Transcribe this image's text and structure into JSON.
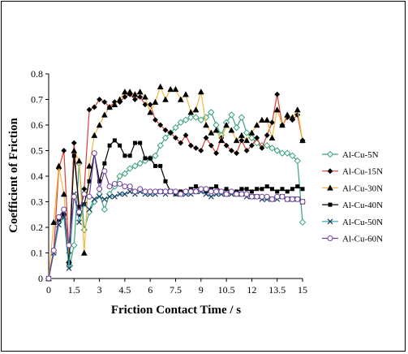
{
  "chart_data": {
    "type": "line",
    "xlabel": "Friction Contact Time / s",
    "ylabel": "Coefficient of Friction",
    "xlim": [
      0,
      15
    ],
    "ylim": [
      0,
      0.8
    ],
    "xticks": [
      0,
      1.5,
      3,
      4.5,
      6,
      7.5,
      9,
      10.5,
      12,
      13.5,
      15
    ],
    "xtick_labels": [
      "0",
      "1.5",
      "3",
      "4.5",
      "6",
      "7.5",
      "9",
      "10.5",
      "12",
      "13.5",
      "15"
    ],
    "yticks": [
      0,
      0.1,
      0.2,
      0.3,
      0.4,
      0.5,
      0.6,
      0.7,
      0.8
    ],
    "ytick_labels": [
      "0",
      "0.1",
      "0.2",
      "0.3",
      "0.4",
      "0.5",
      "0.6",
      "0.7",
      "0.8"
    ],
    "legend_position": "right",
    "grid": false,
    "series": [
      {
        "name": "Al-Cu-5N",
        "color": "#3aa37a",
        "marker": "diamond-open",
        "points": [
          [
            0,
            0
          ],
          [
            0.3,
            0.1
          ],
          [
            0.6,
            0.22
          ],
          [
            0.9,
            0.25
          ],
          [
            1.25,
            0.05
          ],
          [
            1.5,
            0.13
          ],
          [
            1.8,
            0.45
          ],
          [
            2.1,
            0.19
          ],
          [
            2.4,
            0.26
          ],
          [
            2.7,
            0.3
          ],
          [
            3.0,
            0.33
          ],
          [
            3.3,
            0.27
          ],
          [
            3.6,
            0.33
          ],
          [
            3.9,
            0.36
          ],
          [
            4.2,
            0.4
          ],
          [
            4.5,
            0.41
          ],
          [
            4.8,
            0.43
          ],
          [
            5.1,
            0.44
          ],
          [
            5.4,
            0.45
          ],
          [
            5.7,
            0.46
          ],
          [
            6.0,
            0.47
          ],
          [
            6.3,
            0.48
          ],
          [
            6.6,
            0.52
          ],
          [
            6.9,
            0.55
          ],
          [
            7.2,
            0.57
          ],
          [
            7.5,
            0.59
          ],
          [
            7.8,
            0.61
          ],
          [
            8.1,
            0.62
          ],
          [
            8.4,
            0.63
          ],
          [
            8.7,
            0.63
          ],
          [
            9.0,
            0.62
          ],
          [
            9.3,
            0.63
          ],
          [
            9.6,
            0.65
          ],
          [
            9.9,
            0.6
          ],
          [
            10.2,
            0.56
          ],
          [
            10.5,
            0.61
          ],
          [
            10.8,
            0.64
          ],
          [
            11.1,
            0.59
          ],
          [
            11.4,
            0.63
          ],
          [
            11.7,
            0.57
          ],
          [
            12.0,
            0.55
          ],
          [
            12.3,
            0.53
          ],
          [
            12.6,
            0.52
          ],
          [
            12.9,
            0.52
          ],
          [
            13.2,
            0.51
          ],
          [
            13.5,
            0.5
          ],
          [
            13.8,
            0.49
          ],
          [
            14.1,
            0.49
          ],
          [
            14.4,
            0.48
          ],
          [
            14.7,
            0.46
          ],
          [
            15.0,
            0.22
          ]
        ]
      },
      {
        "name": "Al-Cu-15N",
        "color": "#e03c31",
        "marker": "diamond-filled",
        "points": [
          [
            0,
            0
          ],
          [
            0.3,
            0.11
          ],
          [
            0.6,
            0.43
          ],
          [
            0.9,
            0.5
          ],
          [
            1.2,
            0.1
          ],
          [
            1.5,
            0.53
          ],
          [
            1.8,
            0.25
          ],
          [
            2.1,
            0.35
          ],
          [
            2.4,
            0.66
          ],
          [
            2.7,
            0.67
          ],
          [
            3.0,
            0.7
          ],
          [
            3.3,
            0.69
          ],
          [
            3.6,
            0.67
          ],
          [
            3.9,
            0.69
          ],
          [
            4.2,
            0.69
          ],
          [
            4.5,
            0.71
          ],
          [
            4.8,
            0.72
          ],
          [
            5.1,
            0.7
          ],
          [
            5.4,
            0.71
          ],
          [
            5.7,
            0.68
          ],
          [
            6.0,
            0.68
          ],
          [
            6.3,
            0.62
          ],
          [
            6.6,
            0.6
          ],
          [
            6.9,
            0.58
          ],
          [
            7.2,
            0.57
          ],
          [
            7.5,
            0.55
          ],
          [
            7.8,
            0.53
          ],
          [
            8.1,
            0.56
          ],
          [
            8.4,
            0.52
          ],
          [
            8.7,
            0.51
          ],
          [
            9.0,
            0.5
          ],
          [
            9.3,
            0.55
          ],
          [
            9.6,
            0.52
          ],
          [
            9.9,
            0.49
          ],
          [
            10.2,
            0.55
          ],
          [
            10.5,
            0.52
          ],
          [
            10.8,
            0.5
          ],
          [
            11.1,
            0.49
          ],
          [
            11.4,
            0.54
          ],
          [
            11.7,
            0.5
          ],
          [
            12.0,
            0.52
          ],
          [
            12.3,
            0.55
          ],
          [
            12.6,
            0.51
          ],
          [
            12.9,
            0.56
          ],
          [
            13.2,
            0.61
          ],
          [
            13.5,
            0.72
          ],
          [
            13.8,
            0.6
          ],
          [
            14.1,
            0.63
          ],
          [
            14.4,
            0.62
          ],
          [
            14.7,
            0.64
          ],
          [
            15.0,
            0.54
          ]
        ]
      },
      {
        "name": "Al-Cu-30N",
        "color": "#f0b940",
        "marker": "triangle-filled",
        "points": [
          [
            0,
            0
          ],
          [
            0.3,
            0.22
          ],
          [
            0.6,
            0.44
          ],
          [
            0.9,
            0.33
          ],
          [
            1.2,
            0.07
          ],
          [
            1.5,
            0.5
          ],
          [
            1.8,
            0.46
          ],
          [
            2.1,
            0.1
          ],
          [
            2.4,
            0.44
          ],
          [
            2.7,
            0.56
          ],
          [
            3.0,
            0.6
          ],
          [
            3.3,
            0.64
          ],
          [
            3.6,
            0.67
          ],
          [
            3.9,
            0.68
          ],
          [
            4.2,
            0.7
          ],
          [
            4.5,
            0.73
          ],
          [
            4.8,
            0.73
          ],
          [
            5.1,
            0.72
          ],
          [
            5.4,
            0.73
          ],
          [
            5.7,
            0.71
          ],
          [
            6.0,
            0.65
          ],
          [
            6.3,
            0.69
          ],
          [
            6.6,
            0.75
          ],
          [
            6.9,
            0.7
          ],
          [
            7.2,
            0.74
          ],
          [
            7.5,
            0.74
          ],
          [
            7.8,
            0.7
          ],
          [
            8.1,
            0.72
          ],
          [
            8.4,
            0.65
          ],
          [
            8.7,
            0.66
          ],
          [
            9.0,
            0.73
          ],
          [
            9.3,
            0.6
          ],
          [
            9.6,
            0.57
          ],
          [
            9.9,
            0.58
          ],
          [
            10.2,
            0.54
          ],
          [
            10.5,
            0.6
          ],
          [
            10.8,
            0.58
          ],
          [
            11.1,
            0.54
          ],
          [
            11.4,
            0.56
          ],
          [
            11.7,
            0.54
          ],
          [
            12.0,
            0.57
          ],
          [
            12.3,
            0.6
          ],
          [
            12.6,
            0.62
          ],
          [
            12.9,
            0.62
          ],
          [
            13.2,
            0.55
          ],
          [
            13.5,
            0.66
          ],
          [
            13.8,
            0.6
          ],
          [
            14.1,
            0.64
          ],
          [
            14.4,
            0.63
          ],
          [
            14.7,
            0.66
          ],
          [
            15.0,
            0.54
          ]
        ]
      },
      {
        "name": "Al-Cu-40N",
        "color": "#000000",
        "marker": "square-filled",
        "points": [
          [
            0,
            0
          ],
          [
            0.3,
            0.11
          ],
          [
            0.6,
            0.23
          ],
          [
            0.9,
            0.25
          ],
          [
            1.2,
            0.06
          ],
          [
            1.5,
            0.48
          ],
          [
            1.8,
            0.28
          ],
          [
            2.1,
            0.29
          ],
          [
            2.4,
            0.38
          ],
          [
            2.7,
            0.49
          ],
          [
            3.0,
            0.38
          ],
          [
            3.3,
            0.45
          ],
          [
            3.6,
            0.52
          ],
          [
            3.9,
            0.54
          ],
          [
            4.2,
            0.52
          ],
          [
            4.5,
            0.48
          ],
          [
            4.8,
            0.48
          ],
          [
            5.1,
            0.53
          ],
          [
            5.4,
            0.53
          ],
          [
            5.7,
            0.47
          ],
          [
            6.0,
            0.47
          ],
          [
            6.3,
            0.44
          ],
          [
            6.6,
            0.44
          ],
          [
            6.9,
            0.38
          ],
          [
            7.2,
            0.34
          ],
          [
            7.5,
            0.33
          ],
          [
            7.8,
            0.34
          ],
          [
            8.1,
            0.34
          ],
          [
            8.4,
            0.35
          ],
          [
            8.7,
            0.36
          ],
          [
            9.0,
            0.35
          ],
          [
            9.3,
            0.34
          ],
          [
            9.6,
            0.35
          ],
          [
            9.9,
            0.36
          ],
          [
            10.2,
            0.34
          ],
          [
            10.5,
            0.35
          ],
          [
            10.8,
            0.34
          ],
          [
            11.1,
            0.34
          ],
          [
            11.4,
            0.35
          ],
          [
            11.7,
            0.35
          ],
          [
            12.0,
            0.34
          ],
          [
            12.3,
            0.35
          ],
          [
            12.6,
            0.35
          ],
          [
            12.9,
            0.36
          ],
          [
            13.2,
            0.35
          ],
          [
            13.5,
            0.34
          ],
          [
            13.8,
            0.35
          ],
          [
            14.1,
            0.34
          ],
          [
            14.4,
            0.35
          ],
          [
            14.7,
            0.36
          ],
          [
            15.0,
            0.35
          ]
        ]
      },
      {
        "name": "Al-Cu-50N",
        "color": "#36a3b0",
        "marker": "x",
        "points": [
          [
            0,
            0
          ],
          [
            0.3,
            0.1
          ],
          [
            0.6,
            0.21
          ],
          [
            0.9,
            0.24
          ],
          [
            1.2,
            0.04
          ],
          [
            1.5,
            0.33
          ],
          [
            1.8,
            0.22
          ],
          [
            2.1,
            0.29
          ],
          [
            2.4,
            0.27
          ],
          [
            2.7,
            0.31
          ],
          [
            3.0,
            0.32
          ],
          [
            3.3,
            0.31
          ],
          [
            3.6,
            0.32
          ],
          [
            3.9,
            0.32
          ],
          [
            4.2,
            0.33
          ],
          [
            4.5,
            0.33
          ],
          [
            4.8,
            0.34
          ],
          [
            5.1,
            0.33
          ],
          [
            5.4,
            0.34
          ],
          [
            5.7,
            0.33
          ],
          [
            6.0,
            0.33
          ],
          [
            6.3,
            0.33
          ],
          [
            6.6,
            0.34
          ],
          [
            6.9,
            0.33
          ],
          [
            7.2,
            0.34
          ],
          [
            7.5,
            0.33
          ],
          [
            7.8,
            0.33
          ],
          [
            8.1,
            0.33
          ],
          [
            8.4,
            0.33
          ],
          [
            8.7,
            0.34
          ],
          [
            9.0,
            0.34
          ],
          [
            9.3,
            0.33
          ],
          [
            9.6,
            0.32
          ],
          [
            9.9,
            0.33
          ],
          [
            10.2,
            0.33
          ],
          [
            10.5,
            0.33
          ],
          [
            10.8,
            0.33
          ],
          [
            11.1,
            0.33
          ],
          [
            11.4,
            0.33
          ],
          [
            11.7,
            0.32
          ],
          [
            12.0,
            0.32
          ],
          [
            12.3,
            0.32
          ],
          [
            12.6,
            0.31
          ],
          [
            12.9,
            0.31
          ],
          [
            13.2,
            0.31
          ],
          [
            13.5,
            0.31
          ],
          [
            13.8,
            0.32
          ],
          [
            14.1,
            0.31
          ],
          [
            14.4,
            0.31
          ],
          [
            14.7,
            0.31
          ],
          [
            15.0,
            0.3
          ]
        ]
      },
      {
        "name": "Al-Cu-60N",
        "color": "#7040a0",
        "marker": "circle-open",
        "points": [
          [
            0,
            0
          ],
          [
            0.3,
            0.11
          ],
          [
            0.6,
            0.24
          ],
          [
            0.9,
            0.27
          ],
          [
            1.2,
            0.13
          ],
          [
            1.5,
            0.32
          ],
          [
            1.8,
            0.26
          ],
          [
            2.1,
            0.33
          ],
          [
            2.4,
            0.32
          ],
          [
            2.7,
            0.49
          ],
          [
            3.0,
            0.35
          ],
          [
            3.3,
            0.42
          ],
          [
            3.6,
            0.36
          ],
          [
            3.9,
            0.37
          ],
          [
            4.2,
            0.37
          ],
          [
            4.5,
            0.36
          ],
          [
            4.8,
            0.36
          ],
          [
            5.1,
            0.34
          ],
          [
            5.4,
            0.35
          ],
          [
            5.7,
            0.34
          ],
          [
            6.0,
            0.34
          ],
          [
            6.3,
            0.34
          ],
          [
            6.6,
            0.34
          ],
          [
            6.9,
            0.34
          ],
          [
            7.2,
            0.34
          ],
          [
            7.5,
            0.34
          ],
          [
            7.8,
            0.33
          ],
          [
            8.1,
            0.34
          ],
          [
            8.4,
            0.34
          ],
          [
            8.7,
            0.34
          ],
          [
            9.0,
            0.35
          ],
          [
            9.3,
            0.35
          ],
          [
            9.6,
            0.34
          ],
          [
            9.9,
            0.34
          ],
          [
            10.2,
            0.34
          ],
          [
            10.5,
            0.33
          ],
          [
            10.8,
            0.34
          ],
          [
            11.1,
            0.33
          ],
          [
            11.4,
            0.33
          ],
          [
            11.7,
            0.33
          ],
          [
            12.0,
            0.32
          ],
          [
            12.3,
            0.32
          ],
          [
            12.6,
            0.32
          ],
          [
            12.9,
            0.32
          ],
          [
            13.2,
            0.31
          ],
          [
            13.5,
            0.32
          ],
          [
            13.8,
            0.32
          ],
          [
            14.1,
            0.31
          ],
          [
            14.4,
            0.31
          ],
          [
            14.7,
            0.31
          ],
          [
            15.0,
            0.3
          ]
        ]
      }
    ]
  }
}
